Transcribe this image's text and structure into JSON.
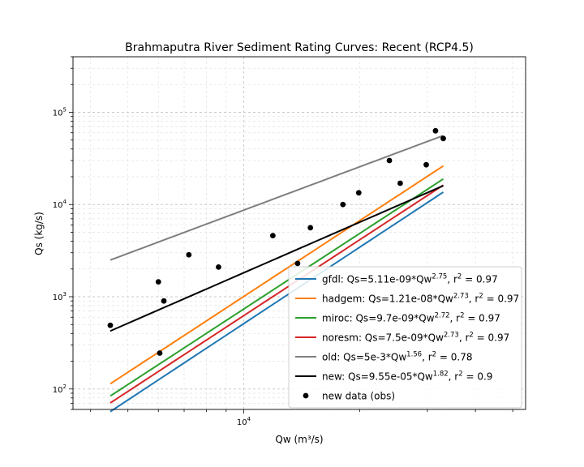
{
  "chart_data": {
    "type": "line",
    "title": "Brahmaputra River Sediment Rating Curves: Recent (RCP4.5)",
    "xlabel": "Qw (m³/s)",
    "ylabel": "Qs (kg/s)",
    "x_scale": "log",
    "y_scale": "log",
    "xlim": [
      3600,
      54000
    ],
    "ylim": [
      60,
      400000
    ],
    "x_ticks": [
      {
        "value": 10000,
        "label": "10",
        "exp": "4"
      }
    ],
    "y_ticks": [
      {
        "value": 100,
        "label": "10",
        "exp": "2"
      },
      {
        "value": 1000,
        "label": "10",
        "exp": "3"
      },
      {
        "value": 10000,
        "label": "10",
        "exp": "4"
      },
      {
        "value": 100000,
        "label": "10",
        "exp": "5"
      }
    ],
    "grid": true,
    "legend_position": "lower-right",
    "x_range_curves": [
      4500,
      33000
    ],
    "series": [
      {
        "name": "gfdl",
        "coef": 5.11e-09,
        "exp": 2.75,
        "color": "#1f77b4",
        "label": {
          "prefix": "gfdl: Qs=5.11e-09*Qw",
          "sup": "2.75",
          "mid": ", r",
          "sup2": "2",
          "suffix": " = 0.97"
        }
      },
      {
        "name": "hadgem",
        "coef": 1.21e-08,
        "exp": 2.73,
        "color": "#ff7f0e",
        "label": {
          "prefix": "hadgem: Qs=1.21e-08*Qw",
          "sup": "2.73",
          "mid": ", r",
          "sup2": "2",
          "suffix": " = 0.97"
        }
      },
      {
        "name": "miroc",
        "coef": 9.7e-09,
        "exp": 2.72,
        "color": "#2ca02c",
        "label": {
          "prefix": "miroc: Qs=9.7e-09*Qw",
          "sup": "2.72",
          "mid": ", r",
          "sup2": "2",
          "suffix": " = 0.97"
        }
      },
      {
        "name": "noresm",
        "coef": 7.5e-09,
        "exp": 2.73,
        "color": "#d62728",
        "label": {
          "prefix": "noresm: Qs=7.5e-09*Qw",
          "sup": "2.73",
          "mid": ", r",
          "sup2": "2",
          "suffix": " = 0.97"
        }
      },
      {
        "name": "old",
        "coef": 0.005,
        "exp": 1.56,
        "color": "#7f7f7f",
        "label": {
          "prefix": "old: Qs=5e-3*Qw",
          "sup": "1.56",
          "mid": ", r",
          "sup2": "2",
          "suffix": " = 0.78"
        }
      },
      {
        "name": "new",
        "coef": 9.55e-05,
        "exp": 1.82,
        "color": "#000000",
        "label": {
          "prefix": "new: Qs=9.55e-05*Qw",
          "sup": "1.82",
          "mid": ", r",
          "sup2": "2",
          "suffix": " = 0.9"
        }
      }
    ],
    "observations": {
      "name": "new data (obs)",
      "label": "new data (obs)",
      "color": "#000000",
      "points": [
        {
          "x": 4500,
          "y": 490
        },
        {
          "x": 6000,
          "y": 1450
        },
        {
          "x": 6050,
          "y": 245
        },
        {
          "x": 6200,
          "y": 900
        },
        {
          "x": 7200,
          "y": 2850
        },
        {
          "x": 8600,
          "y": 2100
        },
        {
          "x": 11900,
          "y": 4600
        },
        {
          "x": 13800,
          "y": 2300
        },
        {
          "x": 14900,
          "y": 5600
        },
        {
          "x": 18100,
          "y": 10000
        },
        {
          "x": 19900,
          "y": 13400
        },
        {
          "x": 23900,
          "y": 30000
        },
        {
          "x": 25500,
          "y": 17000
        },
        {
          "x": 29800,
          "y": 27000
        },
        {
          "x": 31500,
          "y": 63000
        },
        {
          "x": 33000,
          "y": 52000
        }
      ]
    }
  }
}
